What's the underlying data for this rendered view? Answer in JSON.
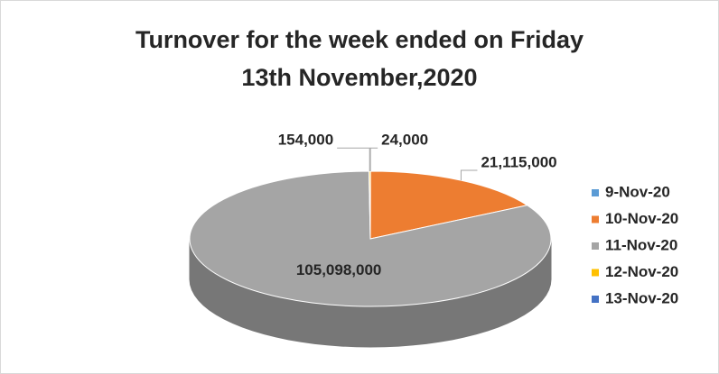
{
  "chart_data": {
    "type": "pie3d",
    "title": [
      "Turnover for the week ended on Friday",
      "13th November,2020"
    ],
    "categories": [
      "9-Nov-20",
      "10-Nov-20",
      "11-Nov-20",
      "12-Nov-20",
      "13-Nov-20"
    ],
    "values": [
      24000,
      21115000,
      105098000,
      154000,
      null
    ],
    "value_labels": [
      "24,000",
      "21,115,000",
      "105,098,000",
      "154,000",
      null
    ],
    "colors": [
      "#5b9bd5",
      "#ed7d31",
      "#a5a5a5",
      "#ffc000",
      "#4472c4"
    ],
    "legend": "right"
  }
}
